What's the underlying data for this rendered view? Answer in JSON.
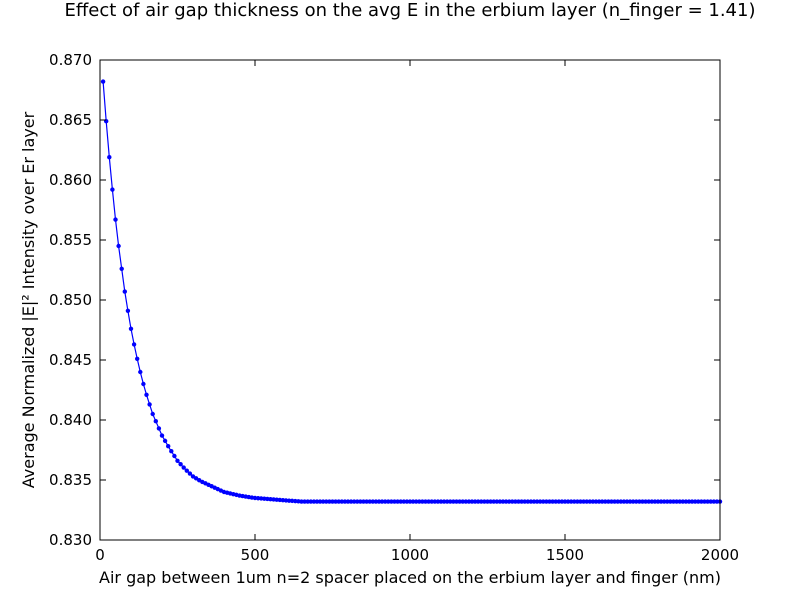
{
  "chart_data": {
    "type": "line",
    "title": "Effect of air gap thickness on the avg E in the erbium layer (n_finger = 1.41)",
    "xlabel": "Air gap between 1um n=2 spacer placed on the erbium layer and finger (nm)",
    "ylabel": "Average Normalized |E|² Intensity over Er layer",
    "xlim": [
      0,
      2000
    ],
    "ylim": [
      0.83,
      0.87
    ],
    "xticks": [
      0,
      500,
      1000,
      1500,
      2000
    ],
    "xtick_labels": [
      "0",
      "500",
      "1000",
      "1500",
      "2000"
    ],
    "yticks": [
      0.83,
      0.835,
      0.84,
      0.845,
      0.85,
      0.855,
      0.86,
      0.865,
      0.87
    ],
    "ytick_labels": [
      "0.830",
      "0.835",
      "0.840",
      "0.845",
      "0.850",
      "0.855",
      "0.860",
      "0.865",
      "0.870"
    ],
    "grid": false,
    "series": [
      {
        "color": "#0000ff",
        "marker": "dot",
        "x": [
          10,
          20,
          30,
          40,
          50,
          60,
          70,
          80,
          90,
          100,
          110,
          120,
          130,
          140,
          150,
          160,
          170,
          180,
          190,
          200,
          225,
          250,
          275,
          300,
          325,
          350,
          375,
          400,
          450,
          500,
          550,
          600,
          650,
          700,
          800,
          900,
          1000,
          1200,
          1400,
          1600,
          1800,
          2000
        ],
        "y": [
          0.8682,
          0.8649,
          0.8619,
          0.8592,
          0.8567,
          0.8545,
          0.8526,
          0.8507,
          0.8491,
          0.8476,
          0.8463,
          0.8451,
          0.844,
          0.843,
          0.8421,
          0.8413,
          0.8405,
          0.8399,
          0.8393,
          0.8387,
          0.8376,
          0.8366,
          0.8359,
          0.8353,
          0.8349,
          0.8346,
          0.8343,
          0.834,
          0.8337,
          0.8335,
          0.8334,
          0.8333,
          0.8332,
          0.8332,
          0.8332,
          0.8332,
          0.8332,
          0.8332,
          0.8332,
          0.8332,
          0.8332,
          0.8332
        ]
      }
    ]
  }
}
